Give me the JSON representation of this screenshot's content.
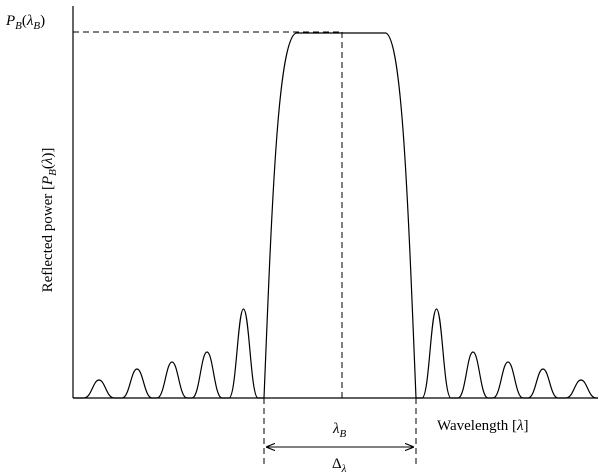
{
  "diagram": {
    "y_peak_label": [
      "P",
      "B",
      "(",
      "λ",
      "B",
      ")"
    ],
    "y_axis_label": [
      "Reflected power [",
      "P",
      "B",
      "(",
      "λ",
      ")]"
    ],
    "x_axis_label": [
      "Wavelength [",
      "λ",
      "]"
    ],
    "center_label": [
      "λ",
      "B"
    ],
    "width_label": [
      "Δ",
      "λ"
    ]
  }
}
